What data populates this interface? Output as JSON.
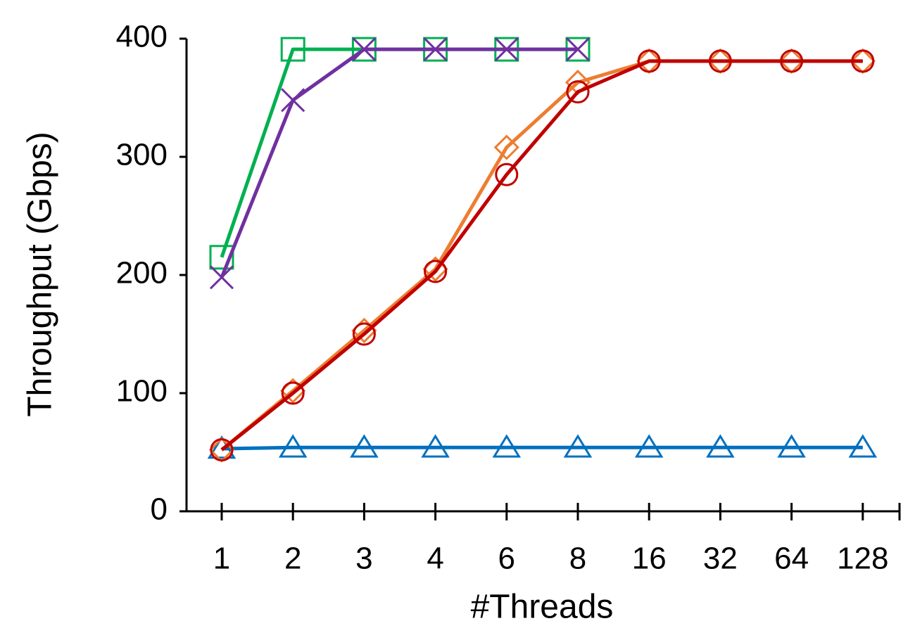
{
  "chart_data": {
    "type": "line",
    "x_label": "#Threads",
    "y_label": "Throughput (Gbps)",
    "categories": [
      "1",
      "2",
      "3",
      "4",
      "6",
      "8",
      "16",
      "32",
      "64",
      "128"
    ],
    "ylim": [
      0,
      400
    ],
    "yticks": [
      0,
      100,
      200,
      300,
      400
    ],
    "grid": false,
    "series": [
      {
        "color": "#0070c0",
        "marker": "triangle",
        "values": [
          53,
          54,
          54,
          54,
          54,
          54,
          54,
          54,
          54,
          54
        ]
      },
      {
        "color": "#00b050",
        "marker": "square",
        "values": [
          215,
          391,
          391,
          391,
          391,
          391,
          null,
          null,
          null,
          null
        ]
      },
      {
        "color": "#7030a0",
        "marker": "x",
        "values": [
          198,
          348,
          391,
          391,
          391,
          391,
          null,
          null,
          null,
          null
        ]
      },
      {
        "color": "#ed7d31",
        "marker": "diamond",
        "values": [
          52,
          102,
          153,
          205,
          308,
          363,
          381,
          381,
          381,
          381
        ]
      },
      {
        "color": "#c00000",
        "marker": "circle",
        "values": [
          52,
          100,
          150,
          203,
          285,
          355,
          381,
          381,
          381,
          381
        ]
      }
    ]
  }
}
